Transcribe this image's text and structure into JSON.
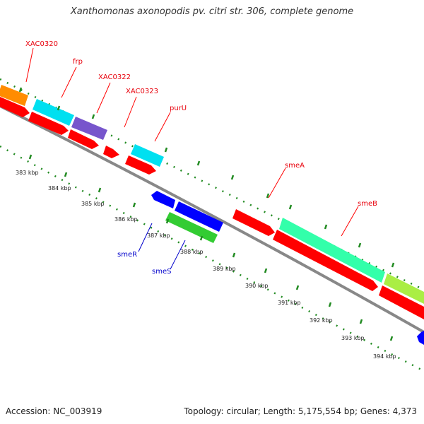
{
  "title": "Xanthomonas axonopodis pv. citri str. 306, complete genome",
  "footer": {
    "accession": "Accession: NC_003919",
    "topology": "Topology: circular; Length: 5,175,554 bp; Genes: 4,373"
  },
  "scale_labels": [
    "383 kbp",
    "384 kbp",
    "385 kbp",
    "386 kbp",
    "387 kbp",
    "388 kbp",
    "389 kbp",
    "390 kbp",
    "391 kbp",
    "392 kbp",
    "393 kbp",
    "394 kbp"
  ],
  "gene_labels": [
    {
      "text": "XAC0320",
      "color": "#e8000b"
    },
    {
      "text": "frp",
      "color": "#e8000b"
    },
    {
      "text": "XAC0322",
      "color": "#e8000b"
    },
    {
      "text": "XAC0323",
      "color": "#e8000b"
    },
    {
      "text": "purU",
      "color": "#e8000b"
    },
    {
      "text": "smeA",
      "color": "#e8000b"
    },
    {
      "text": "smeB",
      "color": "#e8000b"
    },
    {
      "text": "smeR",
      "color": "#0000cc"
    },
    {
      "text": "smeS",
      "color": "#0000cc"
    }
  ],
  "colors": {
    "red": "#ff0000",
    "orange": "#ff8c00",
    "cyan": "#00e0f0",
    "purple": "#7755cc",
    "blue": "#0000ff",
    "green": "#33cc33",
    "teal": "#33ffaa",
    "yellowgreen": "#aaee44",
    "dot_green": "#228b22",
    "backbone": "#888888"
  }
}
